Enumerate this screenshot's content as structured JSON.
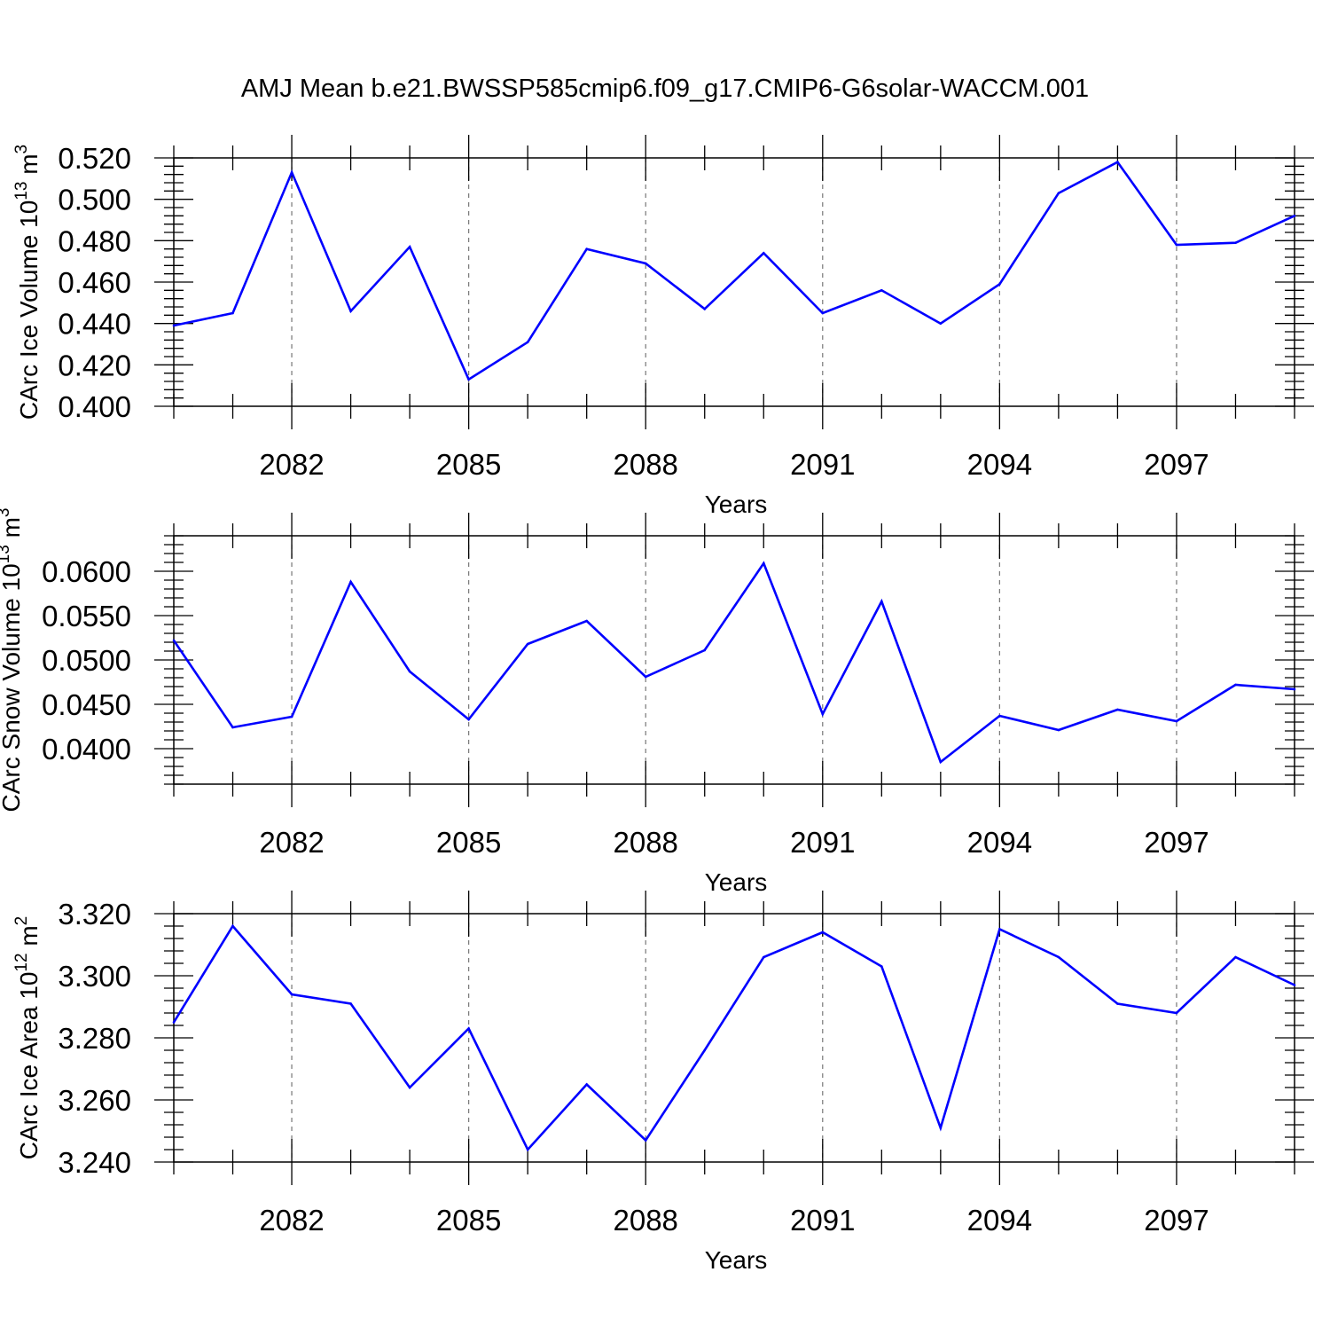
{
  "title": "AMJ Mean b.e21.BWSSP585cmip6.f09_g17.CMIP6-G6solar-WACCM.001",
  "line_color": "#0000ff",
  "chart_data": [
    {
      "type": "line",
      "ylabel": "CArc Ice Volume 10",
      "ylabel_exp": "13",
      "ylabel_unit": "m",
      "ylabel_unit_exp": "3",
      "xlabel": "Years",
      "xlim": [
        2080,
        2099
      ],
      "ylim": [
        0.4,
        0.52
      ],
      "x_ticks": [
        2082,
        2085,
        2088,
        2091,
        2094,
        2097
      ],
      "y_ticks": [
        "0.400",
        "0.420",
        "0.440",
        "0.460",
        "0.480",
        "0.500",
        "0.520"
      ],
      "x": [
        2080,
        2081,
        2082,
        2083,
        2084,
        2085,
        2086,
        2087,
        2088,
        2089,
        2090,
        2091,
        2092,
        2093,
        2094,
        2095,
        2096,
        2097,
        2098,
        2099
      ],
      "values": [
        0.439,
        0.445,
        0.513,
        0.446,
        0.477,
        0.413,
        0.431,
        0.476,
        0.469,
        0.447,
        0.474,
        0.445,
        0.456,
        0.44,
        0.459,
        0.503,
        0.518,
        0.478,
        0.479,
        0.492
      ],
      "grid": "dashed vertical at major x ticks"
    },
    {
      "type": "line",
      "ylabel": "CArc Snow Volume 10",
      "ylabel_exp": "13",
      "ylabel_unit": "m",
      "ylabel_unit_exp": "3",
      "xlabel": "Years",
      "xlim": [
        2080,
        2099
      ],
      "ylim": [
        0.036,
        0.064
      ],
      "x_ticks": [
        2082,
        2085,
        2088,
        2091,
        2094,
        2097
      ],
      "y_ticks": [
        "0.0400",
        "0.0450",
        "0.0500",
        "0.0550",
        "0.0600"
      ],
      "x": [
        2080,
        2081,
        2082,
        2083,
        2084,
        2085,
        2086,
        2087,
        2088,
        2089,
        2090,
        2091,
        2092,
        2093,
        2094,
        2095,
        2096,
        2097,
        2098,
        2099
      ],
      "values": [
        0.0522,
        0.0424,
        0.0436,
        0.0588,
        0.0487,
        0.0433,
        0.0518,
        0.0544,
        0.0481,
        0.0511,
        0.0609,
        0.0439,
        0.0566,
        0.0385,
        0.0437,
        0.0421,
        0.0444,
        0.0431,
        0.0472,
        0.0467
      ],
      "grid": "dashed vertical at major x ticks"
    },
    {
      "type": "line",
      "ylabel": "CArc Ice Area 10",
      "ylabel_exp": "12",
      "ylabel_unit": "m",
      "ylabel_unit_exp": "2",
      "xlabel": "Years",
      "xlim": [
        2080,
        2099
      ],
      "ylim": [
        3.24,
        3.32
      ],
      "x_ticks": [
        2082,
        2085,
        2088,
        2091,
        2094,
        2097
      ],
      "y_ticks": [
        "3.240",
        "3.260",
        "3.280",
        "3.300",
        "3.320"
      ],
      "x": [
        2080,
        2081,
        2082,
        2083,
        2084,
        2085,
        2086,
        2087,
        2088,
        2089,
        2090,
        2091,
        2092,
        2093,
        2094,
        2095,
        2096,
        2097,
        2098,
        2099
      ],
      "values": [
        3.285,
        3.316,
        3.294,
        3.291,
        3.264,
        3.283,
        3.244,
        3.265,
        3.247,
        3.276,
        3.306,
        3.314,
        3.303,
        3.251,
        3.315,
        3.306,
        3.291,
        3.288,
        3.306,
        3.297
      ],
      "grid": "dashed vertical at major x ticks"
    }
  ]
}
